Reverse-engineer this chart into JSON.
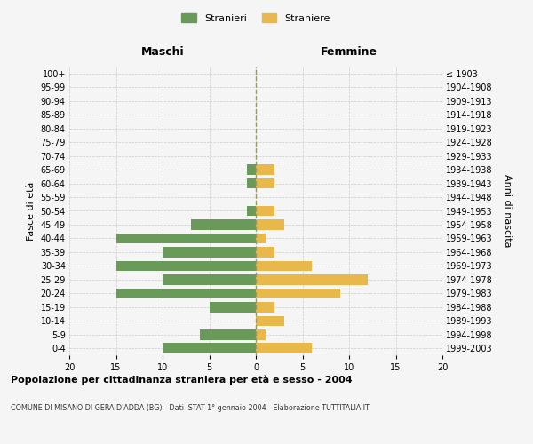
{
  "age_groups": [
    "0-4",
    "5-9",
    "10-14",
    "15-19",
    "20-24",
    "25-29",
    "30-34",
    "35-39",
    "40-44",
    "45-49",
    "50-54",
    "55-59",
    "60-64",
    "65-69",
    "70-74",
    "75-79",
    "80-84",
    "85-89",
    "90-94",
    "95-99",
    "100+"
  ],
  "birth_years": [
    "1999-2003",
    "1994-1998",
    "1989-1993",
    "1984-1988",
    "1979-1983",
    "1974-1978",
    "1969-1973",
    "1964-1968",
    "1959-1963",
    "1954-1958",
    "1949-1953",
    "1944-1948",
    "1939-1943",
    "1934-1938",
    "1929-1933",
    "1924-1928",
    "1919-1923",
    "1914-1918",
    "1909-1913",
    "1904-1908",
    "≤ 1903"
  ],
  "maschi": [
    10,
    6,
    0,
    5,
    15,
    10,
    15,
    10,
    15,
    7,
    1,
    0,
    1,
    1,
    0,
    0,
    0,
    0,
    0,
    0,
    0
  ],
  "femmine": [
    6,
    1,
    3,
    2,
    9,
    12,
    6,
    2,
    1,
    3,
    2,
    0,
    2,
    2,
    0,
    0,
    0,
    0,
    0,
    0,
    0
  ],
  "color_maschi": "#6a9a5a",
  "color_femmine": "#e8b84b",
  "title": "Popolazione per cittadinanza straniera per età e sesso - 2004",
  "subtitle": "COMUNE DI MISANO DI GERA D'ADDA (BG) - Dati ISTAT 1° gennaio 2004 - Elaborazione TUTTITALIA.IT",
  "label_maschi_header": "Maschi",
  "label_femmine_header": "Femmine",
  "ylabel_left": "Fasce di età",
  "ylabel_right": "Anni di nascita",
  "legend_stranieri": "Stranieri",
  "legend_straniere": "Straniere",
  "xlim": 20,
  "background_color": "#f5f5f5"
}
